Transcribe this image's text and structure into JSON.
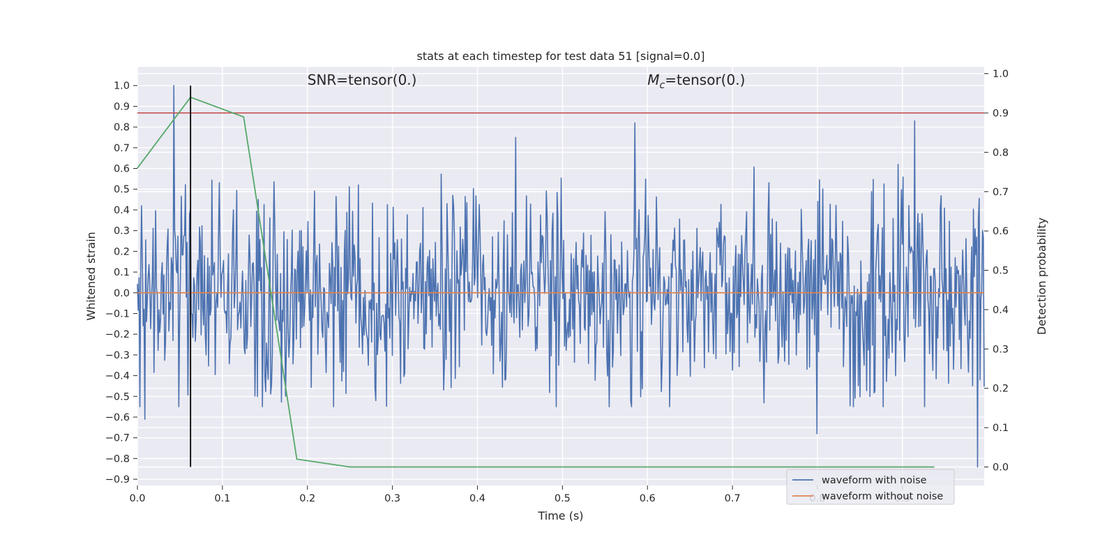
{
  "chart_data": {
    "type": "line",
    "title": "stats at each timestep for test data 51 [signal=0.0]",
    "xlabel": "Time (s)",
    "ylabel": "Whitened strain",
    "y2label": "Detection probability",
    "xlim": [
      0.0,
      0.9961
    ],
    "ylim": [
      -0.93,
      1.09
    ],
    "y2lim": [
      -0.047,
      1.017
    ],
    "x_ticks": [
      "0.0",
      "0.1",
      "0.2",
      "0.3",
      "0.4",
      "0.5",
      "0.6",
      "0.7",
      "0.8",
      "0.9"
    ],
    "y_ticks": [
      "1.0",
      "0.9",
      "0.8",
      "0.7",
      "0.6",
      "0.5",
      "0.4",
      "0.3",
      "0.2",
      "0.1",
      "0.0",
      "−0.1",
      "−0.2",
      "−0.3",
      "−0.4",
      "−0.5",
      "−0.6",
      "−0.7",
      "−0.8",
      "−0.9"
    ],
    "y2_ticks": [
      "1.0",
      "0.9",
      "0.8",
      "0.7",
      "0.6",
      "0.5",
      "0.4",
      "0.3",
      "0.2",
      "0.1",
      "0.0"
    ],
    "grid": true,
    "legend_position": "lower-right",
    "annotations": {
      "snr_prefix": "SNR=tensor(0.)",
      "mc_symbol": "M",
      "mc_subscript": "c",
      "mc_rest": "=tensor(0.)"
    },
    "vertical_line_x": 0.0625,
    "threshold_probability": 0.9,
    "series": [
      {
        "name": "waveform with noise",
        "color": "#4c72b0",
        "axis": "left",
        "n_samples": 1024,
        "x_end": 0.9961,
        "noise_std": 0.25,
        "seed": 51,
        "peaks": [
          [
            0.043,
            1.0
          ],
          [
            0.0625,
            0.4
          ],
          [
            0.585,
            0.82
          ],
          [
            0.914,
            0.83
          ],
          [
            0.988,
            -0.84
          ],
          [
            0.009,
            -0.61
          ],
          [
            0.445,
            0.75
          ],
          [
            0.799,
            -0.68
          ]
        ]
      },
      {
        "name": "waveform without noise",
        "color": "#dd8452",
        "axis": "left",
        "x": [
          0.0,
          0.9961
        ],
        "y": [
          0.0,
          0.0
        ]
      },
      {
        "color": "#55a868",
        "axis": "right",
        "x": [
          0.0,
          0.0625,
          0.125,
          0.1875,
          0.25,
          0.3125,
          0.375,
          0.4375,
          0.5,
          0.5625,
          0.625,
          0.6875,
          0.75,
          0.8125,
          0.875,
          0.9375
        ],
        "y": [
          0.76,
          0.94,
          0.89,
          0.02,
          0.0,
          0.0,
          0.0,
          0.0,
          0.0,
          0.0,
          0.0,
          0.0,
          0.0,
          0.0,
          0.0,
          0.0
        ]
      }
    ],
    "colors": {
      "plot_bg": "#eaeaf2",
      "grid": "#ffffff",
      "threshold": "#c44e52",
      "vline": "#000000"
    }
  }
}
